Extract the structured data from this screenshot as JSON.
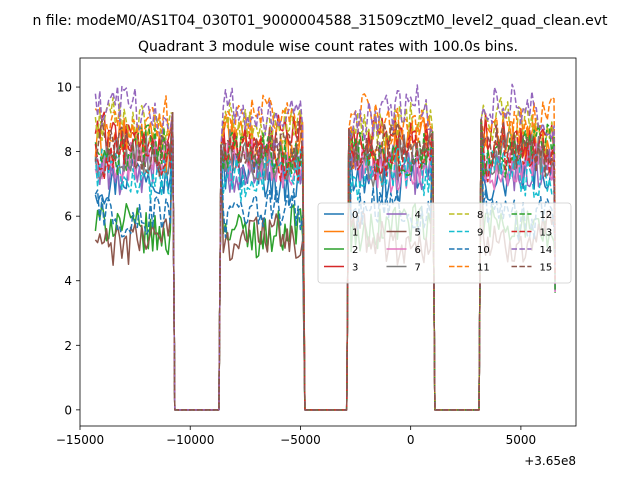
{
  "chart_data": {
    "type": "line",
    "suptitle": "n file: modeM0/AS1T04_030T01_9000004588_31509cztM0_level2_quad_clean.evt",
    "title": "Quadrant 3 module wise count rates with 100.0s bins.",
    "xlabel": "",
    "ylabel": "",
    "x_offset_label": "+3.65e8",
    "xlim": [
      -15000,
      7500
    ],
    "ylim": [
      -0.5,
      10.9
    ],
    "x_ticks": [
      -15000,
      -10000,
      -5000,
      0,
      5000
    ],
    "x_tick_labels": [
      "−15000",
      "−10000",
      "−5000",
      "0",
      "5000"
    ],
    "y_ticks": [
      0,
      2,
      4,
      6,
      8,
      10
    ],
    "y_tick_labels": [
      "0",
      "2",
      "4",
      "6",
      "8",
      "10"
    ],
    "segments": [
      [
        -14300,
        -10800
      ],
      [
        -8600,
        -4900
      ],
      [
        -2800,
        1000
      ],
      [
        3200,
        6550
      ]
    ],
    "gap_value": 0,
    "series": [
      {
        "name": "0",
        "color": "#1f77b4",
        "dash": "solid",
        "level": 7.2
      },
      {
        "name": "1",
        "color": "#ff7f0e",
        "dash": "solid",
        "level": 8.2
      },
      {
        "name": "2",
        "color": "#2ca02c",
        "dash": "solid",
        "level": 5.6
      },
      {
        "name": "3",
        "color": "#d62728",
        "dash": "solid",
        "level": 8.4
      },
      {
        "name": "4",
        "color": "#9467bd",
        "dash": "solid",
        "level": 7.5
      },
      {
        "name": "5",
        "color": "#8c564b",
        "dash": "solid",
        "level": 5.3
      },
      {
        "name": "6",
        "color": "#e377c2",
        "dash": "solid",
        "level": 7.6
      },
      {
        "name": "7",
        "color": "#7f7f7f",
        "dash": "solid",
        "level": 7.8
      },
      {
        "name": "8",
        "color": "#bcbd22",
        "dash": "dashed",
        "level": 8.8
      },
      {
        "name": "9",
        "color": "#17becf",
        "dash": "dashed",
        "level": 7.3
      },
      {
        "name": "10",
        "color": "#1f77b4",
        "dash": "dashed",
        "level": 6.1
      },
      {
        "name": "11",
        "color": "#ff7f0e",
        "dash": "dashed",
        "level": 8.9
      },
      {
        "name": "12",
        "color": "#2ca02c",
        "dash": "dashed",
        "level": 8.0
      },
      {
        "name": "13",
        "color": "#d62728",
        "dash": "dashed",
        "level": 7.9
      },
      {
        "name": "14",
        "color": "#9467bd",
        "dash": "dashed",
        "level": 9.2
      },
      {
        "name": "15",
        "color": "#8c564b",
        "dash": "dashed",
        "level": 8.1
      }
    ],
    "legend": {
      "position": "center-right",
      "columns": 4
    }
  }
}
